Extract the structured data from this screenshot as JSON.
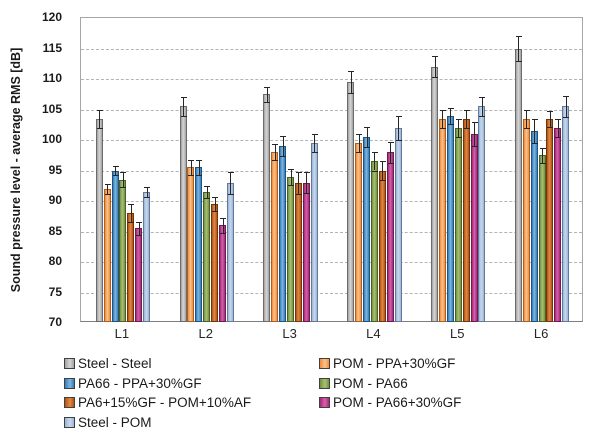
{
  "chart_data": {
    "type": "bar",
    "title": "",
    "xlabel": "",
    "ylabel": "Sound pressure level - average RMS [dB]",
    "ylim": [
      70,
      120
    ],
    "ytick_step": 5,
    "yticks": [
      120,
      115,
      110,
      105,
      100,
      95,
      90,
      85,
      80,
      75,
      70
    ],
    "grid": "horizontal dashed",
    "legend_position": "bottom, two columns",
    "error_bars": true,
    "categories": [
      "L1",
      "L2",
      "L3",
      "L4",
      "L5",
      "L6"
    ],
    "series": [
      {
        "name": "Steel - Steel",
        "color": "#a1a1a1",
        "color_light": "#d6d6d6",
        "border": "#6b6b6b",
        "values": [
          103.5,
          105.5,
          107.5,
          109.5,
          112.0,
          115.0
        ],
        "errors": [
          1.5,
          1.5,
          1.2,
          1.8,
          1.7,
          2.0
        ]
      },
      {
        "name": "POM - PPA+30%GF",
        "color": "#f08c3a",
        "color_light": "#fac28d",
        "border": "#ae5f1d",
        "values": [
          92.0,
          95.5,
          98.0,
          99.5,
          103.5,
          103.5
        ],
        "errors": [
          0.8,
          1.3,
          1.3,
          1.5,
          1.5,
          1.5
        ]
      },
      {
        "name": "PA66 - PPA+30%GF",
        "color": "#2f7dbe",
        "color_light": "#83b5de",
        "border": "#1e557f",
        "values": [
          95.0,
          95.5,
          99.0,
          100.5,
          104.0,
          101.5
        ],
        "errors": [
          0.8,
          1.2,
          1.7,
          1.7,
          1.3,
          2.0
        ]
      },
      {
        "name": "POM - PA66",
        "color": "#729140",
        "color_light": "#a9c172",
        "border": "#4c6128",
        "values": [
          93.5,
          91.5,
          94.0,
          96.5,
          102.0,
          97.5
        ],
        "errors": [
          1.2,
          1.0,
          1.3,
          1.5,
          1.5,
          1.2
        ]
      },
      {
        "name": "PA6+15%GF - POM+10%AF",
        "color": "#b35110",
        "color_light": "#e08b48",
        "border": "#74340a",
        "values": [
          88.0,
          89.5,
          93.0,
          95.0,
          103.5,
          103.5
        ],
        "errors": [
          1.5,
          1.2,
          1.8,
          1.6,
          1.5,
          1.3
        ]
      },
      {
        "name": "POM - PA66+30%GF",
        "color": "#a82678",
        "color_light": "#d263ab",
        "border": "#6f1a4f",
        "values": [
          85.5,
          86.0,
          93.0,
          98.0,
          101.0,
          102.0
        ],
        "errors": [
          1.0,
          1.2,
          1.7,
          1.7,
          2.0,
          1.5
        ]
      },
      {
        "name": "Steel - POM",
        "color": "#98b4d8",
        "color_light": "#c9d9ec",
        "border": "#64799a",
        "values": [
          91.5,
          93.0,
          99.5,
          102.0,
          105.5,
          105.5
        ],
        "errors": [
          0.8,
          1.8,
          1.5,
          2.0,
          1.5,
          1.7
        ]
      }
    ],
    "legend_columns": [
      [
        0,
        2,
        4,
        6
      ],
      [
        1,
        3,
        5
      ]
    ]
  }
}
